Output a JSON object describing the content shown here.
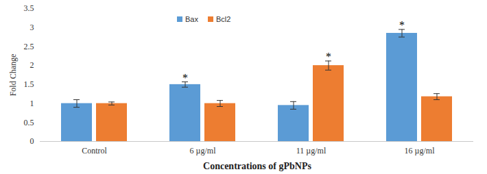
{
  "chart_data": {
    "type": "bar",
    "x_label": "Concentrations  of gPbNPs",
    "y_label": "Fold Change",
    "categories": [
      "Control",
      "6 µg/ml",
      "11 µg/ml",
      "16 µg/ml"
    ],
    "series": [
      {
        "name": "Bax",
        "color": "#5b9bd5",
        "values": [
          1.0,
          1.5,
          0.95,
          2.85
        ],
        "errors": [
          0.1,
          0.07,
          0.1,
          0.1
        ]
      },
      {
        "name": "Bcl2",
        "color": "#ed7d31",
        "values": [
          1.0,
          1.0,
          2.0,
          1.18
        ],
        "errors": [
          0.04,
          0.08,
          0.12,
          0.08
        ]
      }
    ],
    "annotations": [
      {
        "series": "Bax",
        "category": "6 µg/ml",
        "text": "*"
      },
      {
        "series": "Bcl2",
        "category": "11 µg/ml",
        "text": "*"
      },
      {
        "series": "Bax",
        "category": "16 µg/ml",
        "text": "*"
      }
    ],
    "ylim": [
      0,
      3.5
    ],
    "yticks": [
      0,
      0.5,
      1,
      1.5,
      2,
      2.5,
      3,
      3.5
    ],
    "grid": false,
    "legend": "top"
  }
}
